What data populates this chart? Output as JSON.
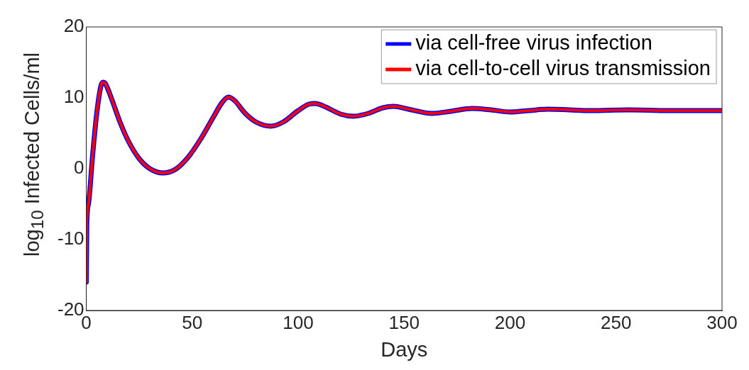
{
  "chart_data": {
    "type": "line",
    "xlabel": "Days",
    "ylabel": "log$_{10}$ Infected Cells/ml",
    "xlim": [
      0,
      300
    ],
    "ylim": [
      -20,
      20
    ],
    "xticks": [
      0,
      50,
      100,
      150,
      200,
      250,
      300
    ],
    "yticks": [
      -20,
      -10,
      0,
      10,
      20
    ],
    "grid": false,
    "legend": "top right",
    "marker": "none",
    "line_style": "solid",
    "x": [
      0,
      0.2,
      1,
      3,
      5,
      7,
      8,
      9,
      12,
      16,
      20,
      25,
      30,
      36,
      42,
      48,
      54,
      60,
      64,
      67,
      70,
      75,
      80,
      87,
      93,
      100,
      105,
      108,
      113,
      120,
      126,
      133,
      140,
      145,
      152,
      163,
      172,
      182,
      191,
      200,
      209,
      218,
      228,
      238,
      256,
      275,
      300
    ],
    "series": [
      {
        "name": "via cell-free virus infection",
        "color": "#0000ff",
        "values": [
          -16,
          -8,
          -5,
          2,
          8,
          11.8,
          12.2,
          12,
          9.8,
          6.5,
          3.8,
          1.4,
          0,
          -0.6,
          -0.1,
          1.6,
          4.2,
          7.3,
          9.3,
          10.1,
          9.6,
          7.8,
          6.6,
          6.0,
          6.6,
          8.2,
          9.1,
          9.2,
          8.7,
          7.7,
          7.4,
          7.8,
          8.6,
          8.8,
          8.4,
          7.8,
          8.1,
          8.5,
          8.3,
          8.0,
          8.2,
          8.4,
          8.3,
          8.2,
          8.3,
          8.2,
          8.2
        ]
      },
      {
        "name": "via cell-to-cell virus transmission",
        "color": "#ff0000",
        "values": [
          -16,
          -8,
          -5,
          2,
          8,
          11.8,
          12.2,
          12,
          9.8,
          6.5,
          3.8,
          1.4,
          0,
          -0.6,
          -0.1,
          1.6,
          4.2,
          7.3,
          9.3,
          10.1,
          9.6,
          7.8,
          6.6,
          6.0,
          6.6,
          8.2,
          9.1,
          9.2,
          8.7,
          7.7,
          7.4,
          7.8,
          8.6,
          8.8,
          8.4,
          7.8,
          8.1,
          8.5,
          8.3,
          8.0,
          8.2,
          8.4,
          8.3,
          8.2,
          8.3,
          8.2,
          8.2
        ]
      }
    ]
  }
}
